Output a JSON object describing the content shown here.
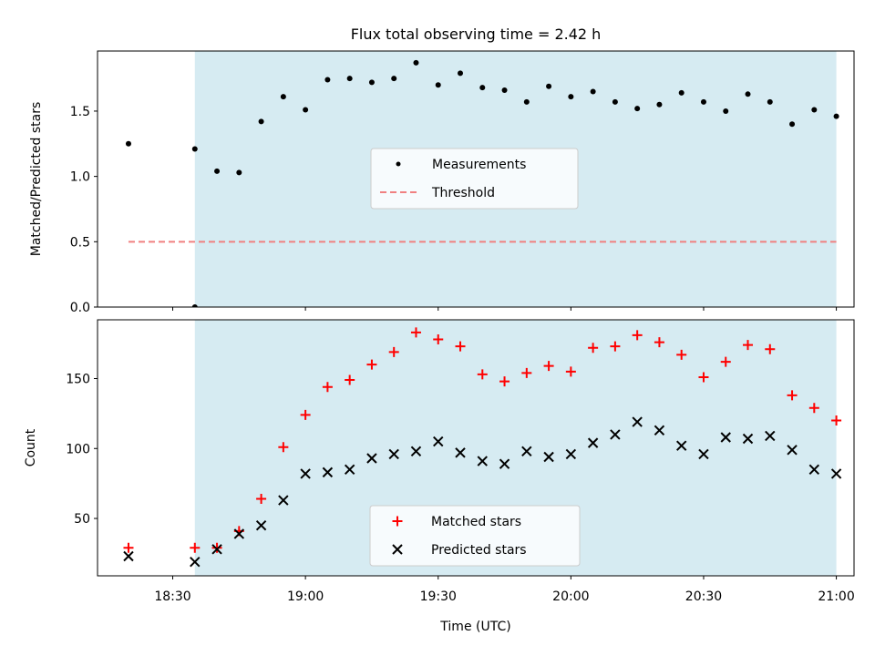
{
  "chart_data": {
    "title": "Flux total observing time = 2.42 h",
    "xlabel": "Time (UTC)",
    "x_tick_labels": [
      "18:30",
      "19:00",
      "19:30",
      "20:00",
      "20:30",
      "21:00"
    ],
    "x_ticks": [
      "18:30",
      "19:00",
      "19:30",
      "20:00",
      "20:30",
      "21:00"
    ],
    "xlim": [
      "18:13",
      "21:04"
    ],
    "shaded_region": {
      "start": "18:35",
      "end": "21:00",
      "color": "#add8e6"
    },
    "panels": [
      {
        "type": "scatter",
        "ylabel": "Matched/Predicted stars",
        "ylim": [
          0,
          1.96
        ],
        "y_ticks": [
          0.0,
          0.5,
          1.0,
          1.5
        ],
        "y_tick_labels": [
          "0.0",
          "0.5",
          "1.0",
          "1.5"
        ],
        "legend_position": "center",
        "series": [
          {
            "name": "Measurements",
            "marker": "dot",
            "color": "#000000",
            "points": [
              [
                "18:20",
                1.25
              ],
              [
                "18:35",
                0.0
              ],
              [
                "18:35",
                1.21
              ],
              [
                "18:40",
                1.04
              ],
              [
                "18:45",
                1.03
              ],
              [
                "18:50",
                1.42
              ],
              [
                "18:55",
                1.61
              ],
              [
                "19:00",
                1.51
              ],
              [
                "19:05",
                1.74
              ],
              [
                "19:10",
                1.75
              ],
              [
                "19:15",
                1.72
              ],
              [
                "19:20",
                1.75
              ],
              [
                "19:25",
                1.87
              ],
              [
                "19:30",
                1.7
              ],
              [
                "19:35",
                1.79
              ],
              [
                "19:40",
                1.68
              ],
              [
                "19:45",
                1.66
              ],
              [
                "19:50",
                1.57
              ],
              [
                "19:55",
                1.69
              ],
              [
                "20:00",
                1.61
              ],
              [
                "20:05",
                1.65
              ],
              [
                "20:10",
                1.57
              ],
              [
                "20:15",
                1.52
              ],
              [
                "20:20",
                1.55
              ],
              [
                "20:25",
                1.64
              ],
              [
                "20:30",
                1.57
              ],
              [
                "20:35",
                1.5
              ],
              [
                "20:40",
                1.63
              ],
              [
                "20:45",
                1.57
              ],
              [
                "20:50",
                1.4
              ],
              [
                "20:55",
                1.51
              ],
              [
                "21:00",
                1.46
              ]
            ]
          },
          {
            "name": "Threshold",
            "marker": "dashed-line",
            "color": "#f08080",
            "points": [
              [
                "18:20",
                0.5
              ],
              [
                "21:00",
                0.5
              ]
            ]
          }
        ]
      },
      {
        "type": "scatter",
        "ylabel": "Count",
        "ylim": [
          9,
          192
        ],
        "y_ticks": [
          50,
          100,
          150
        ],
        "y_tick_labels": [
          "50",
          "100",
          "150"
        ],
        "legend_position": "lower center",
        "series": [
          {
            "name": "Matched stars",
            "marker": "plus",
            "color": "#ff0000",
            "points": [
              [
                "18:20",
                29
              ],
              [
                "18:35",
                29
              ],
              [
                "18:40",
                29
              ],
              [
                "18:45",
                41
              ],
              [
                "18:50",
                64
              ],
              [
                "18:55",
                101
              ],
              [
                "19:00",
                124
              ],
              [
                "19:05",
                144
              ],
              [
                "19:10",
                149
              ],
              [
                "19:15",
                160
              ],
              [
                "19:20",
                169
              ],
              [
                "19:25",
                183
              ],
              [
                "19:30",
                178
              ],
              [
                "19:35",
                173
              ],
              [
                "19:40",
                153
              ],
              [
                "19:45",
                148
              ],
              [
                "19:50",
                154
              ],
              [
                "19:55",
                159
              ],
              [
                "20:00",
                155
              ],
              [
                "20:05",
                172
              ],
              [
                "20:10",
                173
              ],
              [
                "20:15",
                181
              ],
              [
                "20:20",
                176
              ],
              [
                "20:25",
                167
              ],
              [
                "20:30",
                151
              ],
              [
                "20:35",
                162
              ],
              [
                "20:40",
                174
              ],
              [
                "20:45",
                171
              ],
              [
                "20:50",
                138
              ],
              [
                "20:55",
                129
              ],
              [
                "21:00",
                120
              ]
            ]
          },
          {
            "name": "Predicted stars",
            "marker": "x",
            "color": "#000000",
            "points": [
              [
                "18:20",
                23
              ],
              [
                "18:35",
                19
              ],
              [
                "18:40",
                28
              ],
              [
                "18:45",
                39
              ],
              [
                "18:50",
                45
              ],
              [
                "18:55",
                63
              ],
              [
                "19:00",
                82
              ],
              [
                "19:05",
                83
              ],
              [
                "19:10",
                85
              ],
              [
                "19:15",
                93
              ],
              [
                "19:20",
                96
              ],
              [
                "19:25",
                98
              ],
              [
                "19:30",
                105
              ],
              [
                "19:35",
                97
              ],
              [
                "19:40",
                91
              ],
              [
                "19:45",
                89
              ],
              [
                "19:50",
                98
              ],
              [
                "19:55",
                94
              ],
              [
                "20:00",
                96
              ],
              [
                "20:05",
                104
              ],
              [
                "20:10",
                110
              ],
              [
                "20:15",
                119
              ],
              [
                "20:20",
                113
              ],
              [
                "20:25",
                102
              ],
              [
                "20:30",
                96
              ],
              [
                "20:35",
                108
              ],
              [
                "20:40",
                107
              ],
              [
                "20:45",
                109
              ],
              [
                "20:50",
                99
              ],
              [
                "20:55",
                85
              ],
              [
                "21:00",
                82
              ]
            ]
          }
        ]
      }
    ]
  }
}
